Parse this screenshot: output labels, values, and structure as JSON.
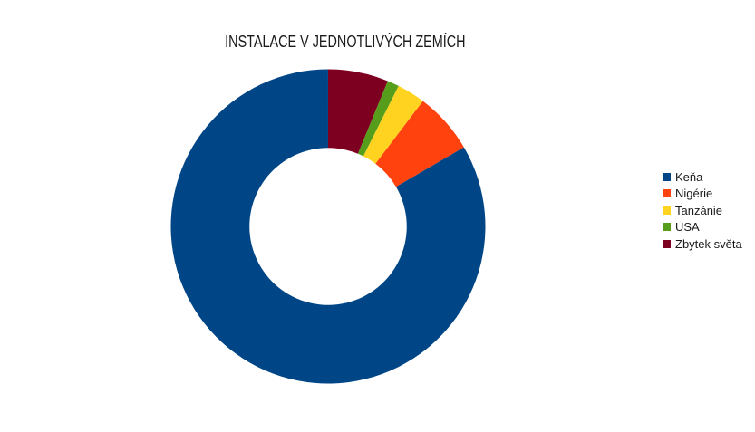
{
  "page": {
    "background": "#ffffff"
  },
  "chart_data": {
    "type": "pie",
    "subtype": "doughnut",
    "title": "INSTALACE V JEDNOTLIVÝCH ZEMÍCH",
    "categories": [
      "Keňa",
      "Nigérie",
      "Tanzánie",
      "USA",
      "Zbytek světa"
    ],
    "values_pct": [
      83.4,
      6.3,
      2.9,
      1.2,
      6.2
    ],
    "colors": [
      "#004586",
      "#FF420E",
      "#FFD320",
      "#579D1C",
      "#7E0021"
    ],
    "legend_position": "right",
    "start_angle": "top",
    "direction": "counterclockwise",
    "inner_radius_ratio": 0.5,
    "hole_color": "#ffffff",
    "title_color": "#1a1a1a",
    "label_color": "#1a1a1a"
  },
  "legend": {
    "items": [
      {
        "label": "Keňa",
        "color": "#004586"
      },
      {
        "label": "Nigérie",
        "color": "#FF420E"
      },
      {
        "label": "Tanzánie",
        "color": "#FFD320"
      },
      {
        "label": "USA",
        "color": "#579D1C"
      },
      {
        "label": "Zbytek světa",
        "color": "#7E0021"
      }
    ]
  }
}
